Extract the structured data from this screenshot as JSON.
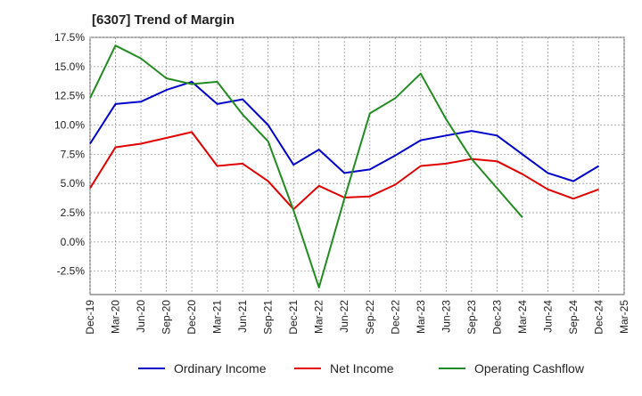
{
  "chart_data": {
    "type": "line",
    "title": "[6307]  Trend of Margin",
    "xlabel": "",
    "ylabel": "",
    "ylim": [
      -4.5,
      17.5
    ],
    "yticks": [
      -2.5,
      0.0,
      2.5,
      5.0,
      7.5,
      10.0,
      12.5,
      15.0,
      17.5
    ],
    "ytick_labels": [
      "-2.5%",
      "0.0%",
      "2.5%",
      "5.0%",
      "7.5%",
      "10.0%",
      "12.5%",
      "15.0%",
      "17.5%"
    ],
    "categories": [
      "Dec-19",
      "Mar-20",
      "Jun-20",
      "Sep-20",
      "Dec-20",
      "Mar-21",
      "Jun-21",
      "Sep-21",
      "Dec-21",
      "Mar-22",
      "Jun-22",
      "Sep-22",
      "Dec-22",
      "Mar-23",
      "Jun-23",
      "Sep-23",
      "Dec-23",
      "Mar-24",
      "Jun-24",
      "Sep-24",
      "Dec-24",
      "Mar-25"
    ],
    "grid": true,
    "legend_position": "bottom",
    "series": [
      {
        "name": "Ordinary Income",
        "color": "#0000cc",
        "values": [
          8.4,
          11.8,
          12.0,
          13.0,
          13.7,
          11.8,
          12.2,
          10.0,
          6.6,
          7.9,
          5.9,
          6.2,
          7.4,
          8.7,
          9.1,
          9.5,
          9.1,
          7.5,
          5.9,
          5.2,
          6.5,
          null
        ]
      },
      {
        "name": "Net Income",
        "color": "#e00000",
        "values": [
          4.6,
          8.1,
          8.4,
          8.9,
          9.4,
          6.5,
          6.7,
          5.2,
          2.8,
          4.8,
          3.8,
          3.9,
          4.9,
          6.5,
          6.7,
          7.1,
          6.9,
          5.8,
          4.5,
          3.7,
          4.5,
          null
        ]
      },
      {
        "name": "Operating Cashflow",
        "color": "#228b22",
        "values": [
          12.3,
          16.8,
          15.7,
          14.0,
          13.5,
          13.7,
          10.9,
          8.6,
          2.7,
          -3.9,
          3.7,
          11.0,
          12.3,
          14.4,
          10.5,
          7.1,
          4.6,
          2.1,
          null,
          null,
          null,
          null
        ]
      }
    ]
  }
}
